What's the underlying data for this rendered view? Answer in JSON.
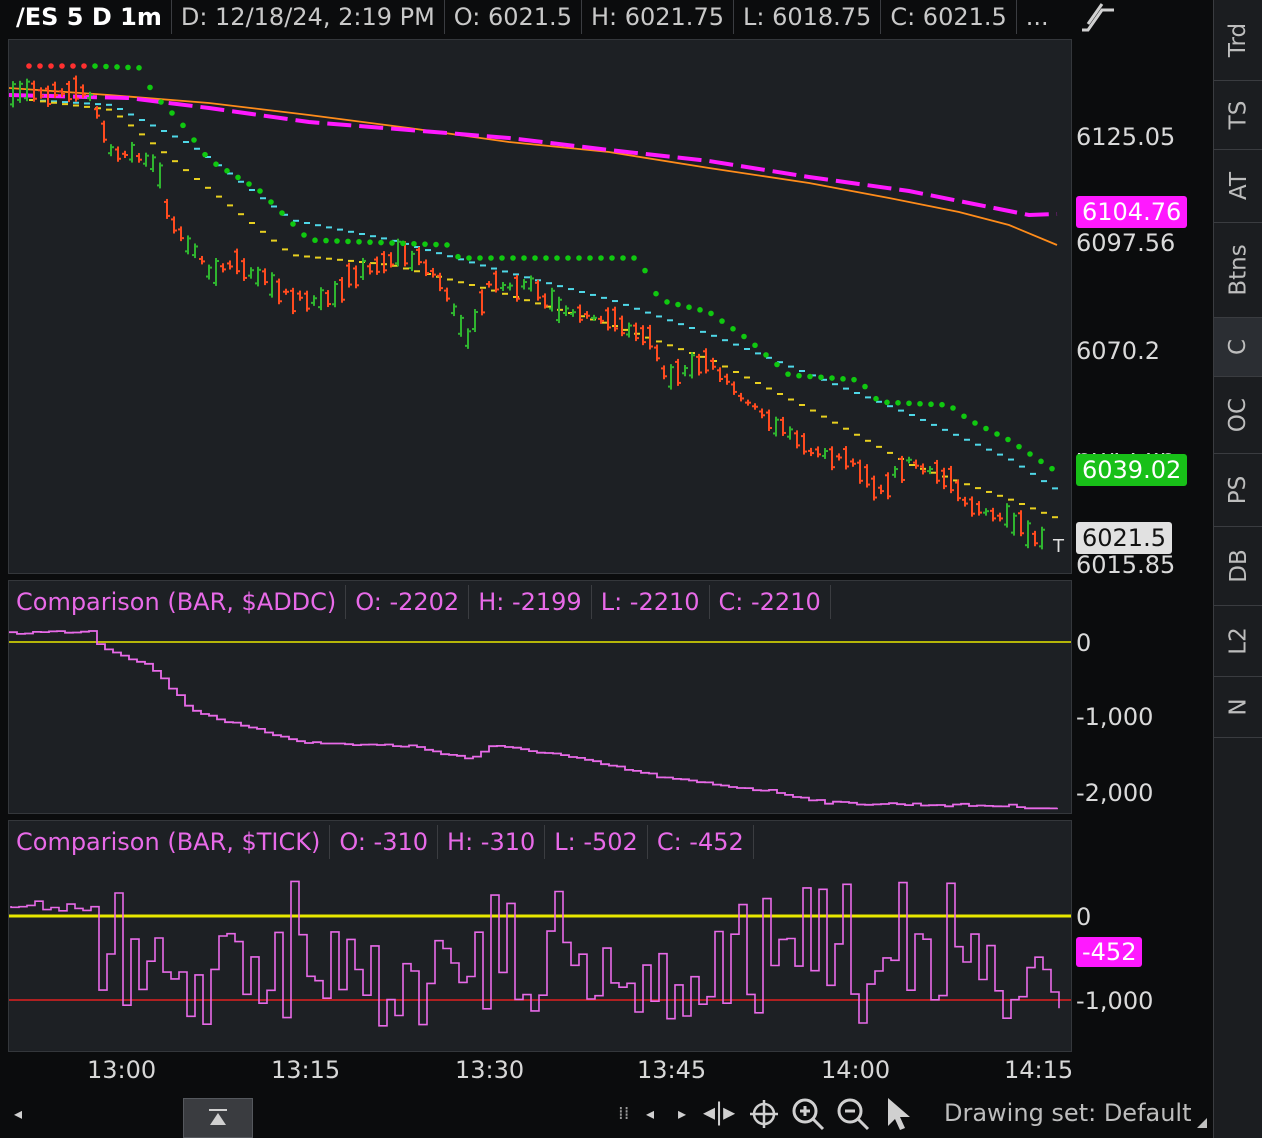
{
  "header": {
    "symbol": "/ES 5 D 1m",
    "date": "D: 12/18/24, 2:19 PM",
    "open": "O: 6021.5",
    "high": "H: 6021.75",
    "low": "L: 6018.75",
    "close": "C: 6021.5",
    "more": "..."
  },
  "price_axis": {
    "labels": [
      "6125.05",
      "6097.56",
      "6070.2",
      "6042.86",
      "6015.85"
    ],
    "tags": {
      "magenta": "6104.76",
      "green": "6039.02",
      "last": "6021.5"
    },
    "last_marker": "T"
  },
  "addc_panel": {
    "title": "Comparison (BAR, $ADDC)",
    "open": "O: -2202",
    "high": "H: -2199",
    "low": "L: -2210",
    "close": "C: -2210",
    "axis_labels": [
      "0",
      "-1,000",
      "-2,000"
    ]
  },
  "tick_panel": {
    "title": "Comparison (BAR, $TICK)",
    "open": "O: -310",
    "high": "H: -310",
    "low": "L: -502",
    "close": "C: -452",
    "axis_labels": [
      "0",
      "-1,000"
    ],
    "last_tag": "-452"
  },
  "time_axis": [
    "13:00",
    "13:15",
    "13:30",
    "13:45",
    "14:00",
    "14:15"
  ],
  "sidebar_tabs": [
    {
      "label": "Trd",
      "active": false
    },
    {
      "label": "TS",
      "active": false
    },
    {
      "label": "AT",
      "active": false
    },
    {
      "label": "Btns",
      "active": false
    },
    {
      "label": "C",
      "active": true
    },
    {
      "label": "OC",
      "active": false
    },
    {
      "label": "PS",
      "active": false
    },
    {
      "label": "DB",
      "active": false
    },
    {
      "label": "L2",
      "active": false
    },
    {
      "label": "N",
      "active": false
    }
  ],
  "toolbar": {
    "drawing_set": "Drawing set: Default"
  },
  "colors": {
    "pane_bg": "#1d2024",
    "down_bar": "#ff4b1f",
    "up_bar": "#2fb52f",
    "psar_dots": "#10c810",
    "sma_magenta": "#ff19ff",
    "ema_orange": "#ff8c1a",
    "avg_cyan": "#4fd8e8",
    "avg_yellow": "#e8d020",
    "comparison_line": "#e86ae8",
    "zero_line": "#e8e800",
    "minus1000_line": "#e02020"
  }
}
